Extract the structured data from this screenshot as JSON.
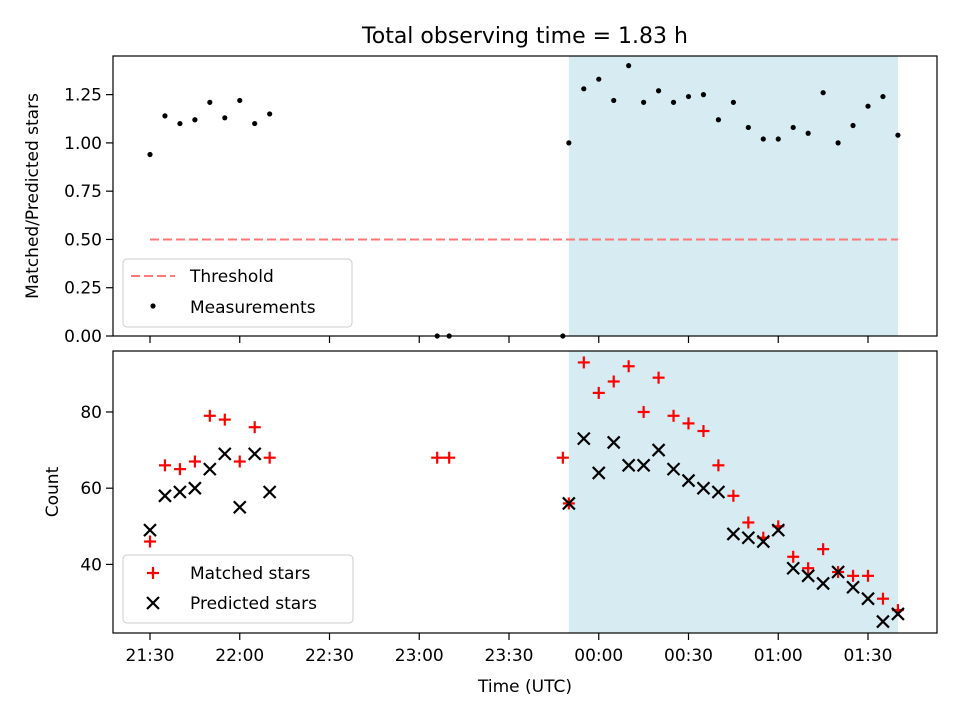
{
  "title": "Total observing time = 1.83 h",
  "xlabel": "Time (UTC)",
  "xticks": [
    "21:30",
    "22:00",
    "22:30",
    "23:00",
    "23:30",
    "00:00",
    "00:30",
    "01:00",
    "01:30"
  ],
  "shaded_region": {
    "start": "23:50",
    "end": "01:40",
    "color": "#add8e6"
  },
  "chart_data": [
    {
      "type": "scatter",
      "ylabel": "Matched/Predicted stars",
      "ylim": [
        0,
        1.45
      ],
      "yticks": [
        "0.00",
        "0.25",
        "0.50",
        "0.75",
        "1.00",
        "1.25"
      ],
      "legend_position": "lower-left",
      "threshold": {
        "name": "Threshold",
        "value": 0.5,
        "x_range": [
          "21:30",
          "01:40"
        ],
        "color": "#ff7777"
      },
      "series": [
        {
          "name": "Measurements",
          "color": "#000000",
          "x": [
            "21:30",
            "21:35",
            "21:40",
            "21:45",
            "21:50",
            "21:55",
            "22:00",
            "22:05",
            "22:10",
            "23:06",
            "23:10",
            "23:48",
            "23:50",
            "23:55",
            "00:00",
            "00:05",
            "00:10",
            "00:15",
            "00:20",
            "00:25",
            "00:30",
            "00:35",
            "00:40",
            "00:45",
            "00:50",
            "00:55",
            "01:00",
            "01:05",
            "01:10",
            "01:15",
            "01:20",
            "01:25",
            "01:30",
            "01:35",
            "01:40"
          ],
          "y": [
            0.94,
            1.14,
            1.1,
            1.12,
            1.21,
            1.13,
            1.22,
            1.1,
            1.15,
            0.0,
            0.0,
            0.0,
            1.0,
            1.28,
            1.33,
            1.22,
            1.4,
            1.21,
            1.27,
            1.21,
            1.24,
            1.25,
            1.12,
            1.21,
            1.08,
            1.02,
            1.02,
            1.08,
            1.05,
            1.26,
            1.0,
            1.09,
            1.19,
            1.24,
            1.04
          ]
        }
      ]
    },
    {
      "type": "scatter",
      "ylabel": "Count",
      "ylim": [
        22,
        96
      ],
      "yticks": [
        "40",
        "60",
        "80"
      ],
      "legend_position": "lower-left",
      "series": [
        {
          "name": "Matched stars",
          "marker": "+",
          "color": "#ff0000",
          "x": [
            "21:30",
            "21:35",
            "21:40",
            "21:45",
            "21:50",
            "21:55",
            "22:00",
            "22:05",
            "22:10",
            "23:06",
            "23:10",
            "23:48",
            "23:50",
            "23:55",
            "00:00",
            "00:05",
            "00:10",
            "00:15",
            "00:20",
            "00:25",
            "00:30",
            "00:35",
            "00:40",
            "00:45",
            "00:50",
            "00:55",
            "01:00",
            "01:05",
            "01:10",
            "01:15",
            "01:20",
            "01:25",
            "01:30",
            "01:35",
            "01:40"
          ],
          "y": [
            46,
            66,
            65,
            67,
            79,
            78,
            67,
            76,
            68,
            68,
            68,
            68,
            56,
            93,
            85,
            88,
            92,
            80,
            89,
            79,
            77,
            75,
            66,
            58,
            51,
            47,
            50,
            42,
            39,
            44,
            38,
            37,
            37,
            31,
            28
          ]
        },
        {
          "name": "Predicted stars",
          "marker": "x",
          "color": "#000000",
          "x": [
            "21:30",
            "21:35",
            "21:40",
            "21:45",
            "21:50",
            "21:55",
            "22:00",
            "22:05",
            "22:10",
            "23:50",
            "23:55",
            "00:00",
            "00:05",
            "00:10",
            "00:15",
            "00:20",
            "00:25",
            "00:30",
            "00:35",
            "00:40",
            "00:45",
            "00:50",
            "00:55",
            "01:00",
            "01:05",
            "01:10",
            "01:15",
            "01:20",
            "01:25",
            "01:30",
            "01:35",
            "01:40"
          ],
          "y": [
            49,
            58,
            59,
            60,
            65,
            69,
            55,
            69,
            59,
            56,
            73,
            64,
            72,
            66,
            66,
            70,
            65,
            62,
            60,
            59,
            48,
            47,
            46,
            49,
            39,
            37,
            35,
            38,
            34,
            31,
            25,
            27
          ]
        }
      ]
    }
  ]
}
